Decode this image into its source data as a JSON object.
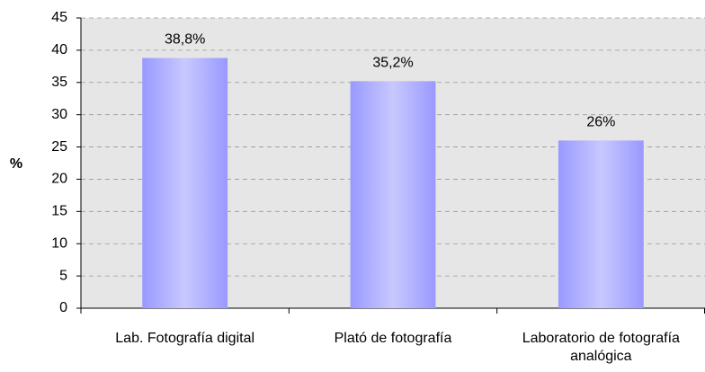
{
  "chart_data": {
    "type": "bar",
    "y_label": "%",
    "categories": [
      "Lab. Fotografía digital",
      "Plató de fotografía",
      "Laboratorio de fotografía analógica"
    ],
    "values": [
      38.8,
      35.2,
      26
    ],
    "value_labels": [
      "38,8%",
      "35,2%",
      "26%"
    ],
    "color": "#9999ff",
    "ylim": [
      0,
      45
    ],
    "yticks": [
      0,
      5,
      10,
      15,
      20,
      25,
      30,
      35,
      40,
      45
    ],
    "grid": true
  }
}
